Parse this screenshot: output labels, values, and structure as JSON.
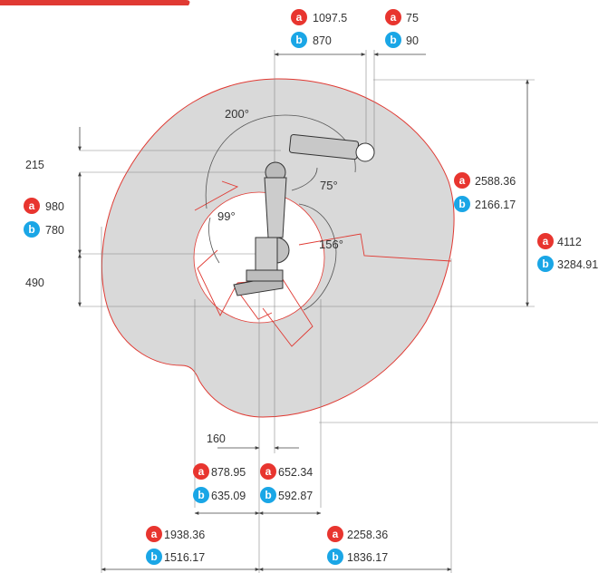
{
  "badge_letters": {
    "a": "a",
    "b": "b"
  },
  "colors": {
    "a": "#e8352f",
    "b": "#1aa6e6",
    "envelope_fill": "#d9d9d9",
    "envelope_stroke": "#e03a33"
  },
  "top": {
    "reach_a": "1097.5",
    "reach_b": "870",
    "offset_a": "75",
    "offset_b": "90"
  },
  "left": {
    "dim_215": "215",
    "dim_a": "980",
    "dim_b": "780",
    "dim_490": "490"
  },
  "right": {
    "upper_a": "2588.36",
    "upper_b": "2166.17",
    "total_a": "4112",
    "total_b": "3284.91"
  },
  "angles": {
    "a200": "200°",
    "a75": "75°",
    "a99": "99°",
    "a156": "156°"
  },
  "bottom": {
    "dim_160": "160",
    "inner_left_a": "878.95",
    "inner_left_b": "635.09",
    "inner_right_a": "652.34",
    "inner_right_b": "592.87",
    "outer_left_a": "1938.36",
    "outer_left_b": "1516.17",
    "outer_right_a": "2258.36",
    "outer_right_b": "1836.17"
  }
}
